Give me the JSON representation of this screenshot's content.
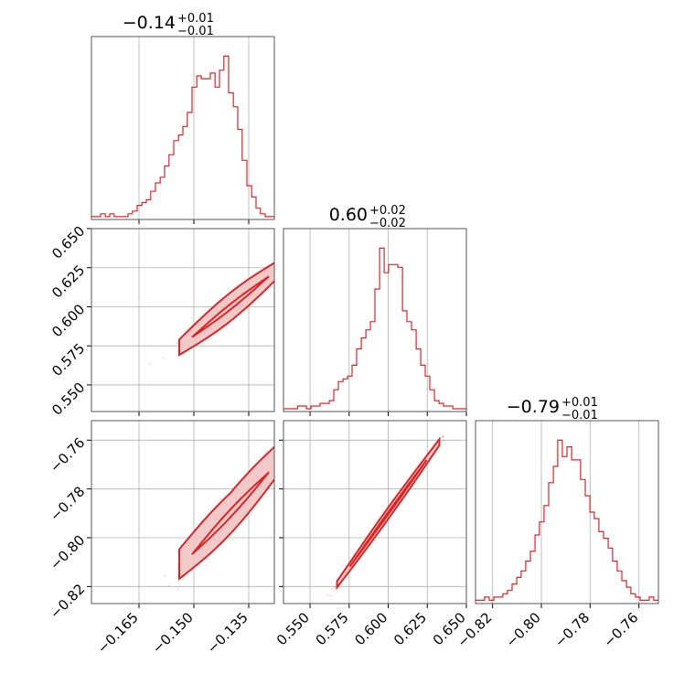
{
  "chart_data": {
    "type": "corner",
    "color": "#d62728",
    "light_color": "#f2c4c4",
    "parameters": [
      {
        "index": 0,
        "median": -0.14,
        "title": "−0.14",
        "err_plus": "+0.01",
        "err_minus": "−0.01",
        "range": [
          -0.178,
          -0.128
        ],
        "ticks": [
          -0.165,
          -0.15,
          -0.135
        ],
        "tick_labels": [
          "−0.165",
          "−0.150",
          "−0.135"
        ],
        "hist_x": [
          -0.178,
          -0.1768,
          -0.1755,
          -0.1742,
          -0.173,
          -0.1718,
          -0.1705,
          -0.1692,
          -0.168,
          -0.1668,
          -0.1655,
          -0.1642,
          -0.163,
          -0.1618,
          -0.1605,
          -0.1592,
          -0.158,
          -0.1568,
          -0.1555,
          -0.1542,
          -0.153,
          -0.1518,
          -0.1505,
          -0.1492,
          -0.148,
          -0.1468,
          -0.1455,
          -0.1442,
          -0.143,
          -0.1418,
          -0.1405,
          -0.1392,
          -0.138,
          -0.1368,
          -0.1355,
          -0.1342,
          -0.133,
          -0.1318,
          -0.1305,
          -0.1292,
          -0.128
        ],
        "hist_counts": [
          1,
          1,
          2,
          1,
          2,
          1,
          1,
          1,
          2,
          3,
          5,
          6,
          7,
          10,
          13,
          15,
          19,
          23,
          28,
          30,
          33,
          38,
          47,
          51,
          50,
          50,
          52,
          47,
          53,
          58,
          45,
          40,
          32,
          21,
          12,
          8,
          4,
          2,
          1,
          1
        ]
      },
      {
        "index": 1,
        "median": 0.6,
        "title": "0.60",
        "err_plus": "+0.02",
        "err_minus": "−0.02",
        "range": [
          0.533,
          0.65
        ],
        "ticks": [
          0.55,
          0.575,
          0.6,
          0.625,
          0.65
        ],
        "tick_labels": [
          "0.550",
          "0.575",
          "0.600",
          "0.625",
          "0.650"
        ],
        "hist_x": [
          0.533,
          0.536,
          0.539,
          0.542,
          0.5447,
          0.5477,
          0.5506,
          0.5535,
          0.5564,
          0.5594,
          0.5623,
          0.5652,
          0.5681,
          0.5711,
          0.574,
          0.5769,
          0.5798,
          0.5828,
          0.5857,
          0.5886,
          0.5915,
          0.5945,
          0.5974,
          0.6003,
          0.6032,
          0.6062,
          0.6091,
          0.612,
          0.6149,
          0.6179,
          0.6208,
          0.6237,
          0.6266,
          0.6296,
          0.6325,
          0.6354,
          0.6383,
          0.6413,
          0.6442,
          0.6471,
          0.65
        ],
        "hist_counts": [
          1,
          1,
          1,
          2,
          2,
          1,
          2,
          2,
          3,
          3,
          4,
          8,
          11,
          12,
          13,
          17,
          23,
          27,
          30,
          33,
          45,
          60,
          51,
          54,
          54,
          53,
          37,
          33,
          30,
          23,
          17,
          13,
          8,
          4,
          3,
          2,
          2,
          1,
          1,
          1
        ]
      },
      {
        "index": 2,
        "median": -0.79,
        "title": "−0.79",
        "err_plus": "+0.01",
        "err_minus": "−0.01",
        "range": [
          -0.827,
          -0.752
        ],
        "ticks": [
          -0.82,
          -0.8,
          -0.78,
          -0.76
        ],
        "tick_labels": [
          "−0.82",
          "−0.80",
          "−0.78",
          "−0.76"
        ],
        "hist_x": [
          -0.827,
          -0.8251,
          -0.8233,
          -0.8214,
          -0.8195,
          -0.8176,
          -0.8158,
          -0.8139,
          -0.812,
          -0.8101,
          -0.8083,
          -0.8064,
          -0.8045,
          -0.8026,
          -0.8008,
          -0.7989,
          -0.797,
          -0.7951,
          -0.7933,
          -0.7914,
          -0.7895,
          -0.7876,
          -0.7858,
          -0.7839,
          -0.782,
          -0.7801,
          -0.7783,
          -0.7764,
          -0.7745,
          -0.7726,
          -0.7708,
          -0.7689,
          -0.767,
          -0.7651,
          -0.7633,
          -0.7614,
          -0.7595,
          -0.7576,
          -0.7558,
          -0.7539,
          -0.752
        ],
        "hist_counts": [
          1,
          1,
          2,
          1,
          2,
          2,
          3,
          4,
          6,
          8,
          10,
          13,
          16,
          21,
          25,
          30,
          37,
          42,
          50,
          45,
          48,
          44,
          44,
          38,
          33,
          28,
          26,
          22,
          20,
          17,
          13,
          10,
          7,
          5,
          3,
          2,
          1,
          1,
          2,
          1
        ]
      }
    ],
    "pairs": [
      {
        "row": 1,
        "col": 0,
        "slope": 1.85,
        "noise_y": 0.0035
      },
      {
        "row": 2,
        "col": 0,
        "slope": 1.6,
        "noise_y": 0.0032
      },
      {
        "row": 2,
        "col": 1,
        "slope": 0.89,
        "noise_y": 0.0009
      }
    ]
  }
}
